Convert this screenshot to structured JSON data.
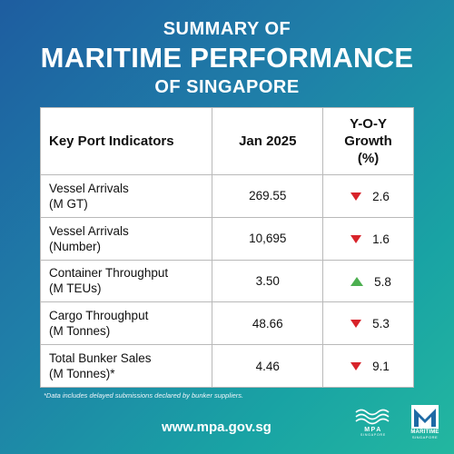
{
  "header": {
    "line1": "SUMMARY OF",
    "line2": "MARITIME PERFORMANCE",
    "line3": "OF SINGAPORE"
  },
  "table": {
    "headers": {
      "indicator": "Key Port Indicators",
      "value": "Jan 2025",
      "growth_line1": "Y-O-Y",
      "growth_line2": "Growth",
      "growth_line3": "(%)"
    },
    "rows": [
      {
        "line1": "Vessel Arrivals",
        "line2": "(M GT)",
        "value": "269.55",
        "growth": "2.6",
        "direction": "down"
      },
      {
        "line1": "Vessel Arrivals",
        "line2": "(Number)",
        "value": "10,695",
        "growth": "1.6",
        "direction": "down"
      },
      {
        "line1": "Container Throughput",
        "line2": "(M TEUs)",
        "value": "3.50",
        "growth": "5.8",
        "direction": "up"
      },
      {
        "line1": "Cargo Throughput",
        "line2": "(M Tonnes)",
        "value": "48.66",
        "growth": "5.3",
        "direction": "down"
      },
      {
        "line1": "Total Bunker Sales",
        "line2": "(M Tonnes)*",
        "value": "4.46",
        "growth": "9.1",
        "direction": "down"
      }
    ],
    "colors": {
      "down": "#d8232a",
      "up": "#4caf50"
    }
  },
  "footnote": "*Data includes delayed submissions declared by bunker suppliers.",
  "website": "www.mpa.gov.sg",
  "logos": {
    "mpa": {
      "text": "MPA",
      "subtext": "SINGAPORE"
    },
    "maritime_singapore": {
      "text": "MARITIME",
      "subtext": "SINGAPORE"
    }
  }
}
